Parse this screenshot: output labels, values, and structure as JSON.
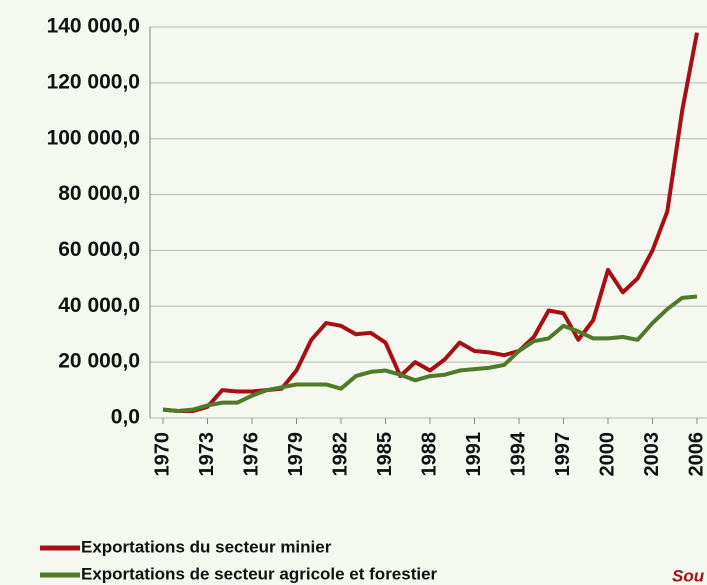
{
  "chart_data": {
    "type": "line",
    "x": [
      1970,
      1971,
      1972,
      1973,
      1974,
      1975,
      1976,
      1977,
      1978,
      1979,
      1980,
      1981,
      1982,
      1983,
      1984,
      1985,
      1986,
      1987,
      1988,
      1989,
      1990,
      1991,
      1992,
      1993,
      1994,
      1995,
      1996,
      1997,
      1998,
      1999,
      2000,
      2001,
      2002,
      2003,
      2004,
      2005,
      2006
    ],
    "series": [
      {
        "name": "Exportations du secteur minier",
        "color": "#a50f15",
        "values": [
          3000,
          2500,
          2500,
          4000,
          10000,
          9500,
          9500,
          10000,
          10500,
          17000,
          28000,
          34000,
          33000,
          30000,
          30500,
          27000,
          15000,
          20000,
          17000,
          21000,
          27000,
          24000,
          23500,
          22500,
          24000,
          29000,
          38500,
          37500,
          28000,
          35000,
          53000,
          45000,
          50000,
          60000,
          74000,
          110000,
          138000
        ]
      },
      {
        "name": "Exportations de secteur  agricole et forestier",
        "color": "#4f7a28",
        "values": [
          3000,
          2500,
          3000,
          4500,
          5500,
          5500,
          8000,
          10000,
          11000,
          12000,
          12000,
          12000,
          10500,
          15000,
          16500,
          17000,
          15500,
          13500,
          15000,
          15500,
          17000,
          17500,
          18000,
          19000,
          24000,
          27500,
          28500,
          33000,
          31000,
          28500,
          28500,
          29000,
          28000,
          34000,
          39000,
          43000,
          43500
        ]
      }
    ],
    "xlim": [
      1970,
      2006
    ],
    "xticks": [
      1970,
      1973,
      1976,
      1979,
      1982,
      1985,
      1988,
      1991,
      1994,
      1997,
      2000,
      2003,
      2006
    ],
    "ylim": [
      0,
      140000
    ],
    "yticks": [
      {
        "value": 0,
        "label": "0,0"
      },
      {
        "value": 20000,
        "label": "20 000,0"
      },
      {
        "value": 40000,
        "label": "40 000,0"
      },
      {
        "value": 60000,
        "label": "60 000,0"
      },
      {
        "value": 80000,
        "label": "80 000,0"
      },
      {
        "value": 100000,
        "label": "100 000,0"
      },
      {
        "value": 120000,
        "label": "120 000,0"
      },
      {
        "value": 140000,
        "label": "140 000,0"
      }
    ],
    "grid": true,
    "legend": "bottom",
    "annotation": "Sou"
  }
}
